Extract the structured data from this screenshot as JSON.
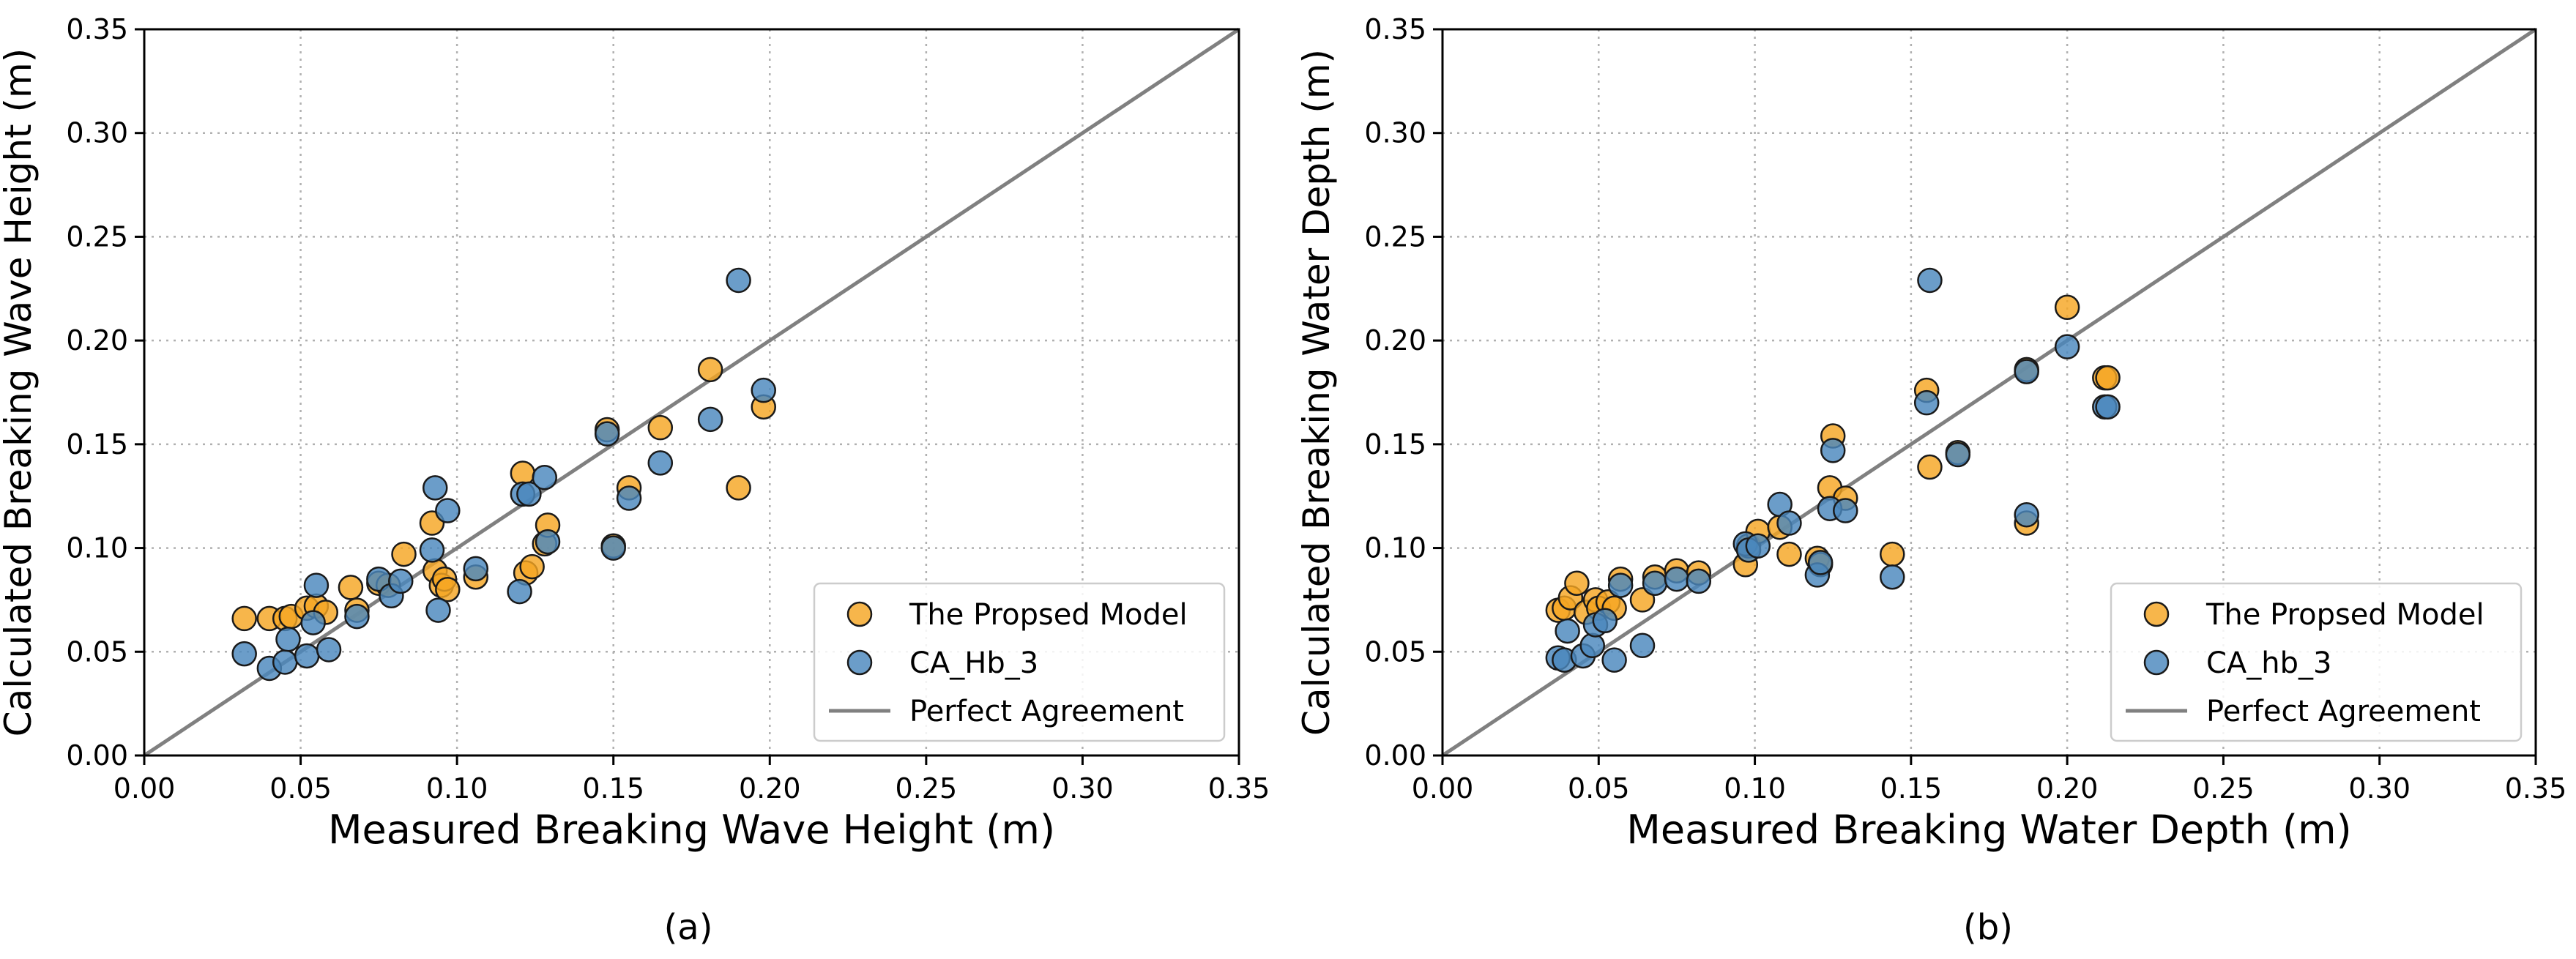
{
  "chart_data": [
    {
      "type": "scatter",
      "panel_label": "(a)",
      "xlabel": "Measured Breaking Wave Height (m)",
      "ylabel": "Calculated Breaking Wave Height (m)",
      "xlim": [
        0,
        0.35
      ],
      "ylim": [
        0,
        0.35
      ],
      "xticks": [
        "0.00",
        "0.05",
        "0.10",
        "0.15",
        "0.20",
        "0.25",
        "0.30",
        "0.35"
      ],
      "yticks": [
        "0.00",
        "0.05",
        "0.10",
        "0.15",
        "0.20",
        "0.25",
        "0.30",
        "0.35"
      ],
      "grid": true,
      "legend_position": "lower-right",
      "series": [
        {
          "name": "The Propsed Model",
          "color": "#f5a623",
          "points": [
            [
              0.032,
              0.066
            ],
            [
              0.04,
              0.066
            ],
            [
              0.045,
              0.066
            ],
            [
              0.047,
              0.067
            ],
            [
              0.052,
              0.071
            ],
            [
              0.055,
              0.072
            ],
            [
              0.058,
              0.069
            ],
            [
              0.066,
              0.081
            ],
            [
              0.068,
              0.07
            ],
            [
              0.075,
              0.083
            ],
            [
              0.078,
              0.082
            ],
            [
              0.083,
              0.097
            ],
            [
              0.092,
              0.112
            ],
            [
              0.093,
              0.089
            ],
            [
              0.095,
              0.082
            ],
            [
              0.096,
              0.085
            ],
            [
              0.097,
              0.08
            ],
            [
              0.106,
              0.086
            ],
            [
              0.121,
              0.136
            ],
            [
              0.122,
              0.088
            ],
            [
              0.124,
              0.091
            ],
            [
              0.128,
              0.102
            ],
            [
              0.129,
              0.111
            ],
            [
              0.148,
              0.157
            ],
            [
              0.15,
              0.101
            ],
            [
              0.155,
              0.129
            ],
            [
              0.165,
              0.158
            ],
            [
              0.181,
              0.186
            ],
            [
              0.19,
              0.129
            ],
            [
              0.198,
              0.168
            ]
          ]
        },
        {
          "name": "CA_Hb_3",
          "color": "#4a87bd",
          "points": [
            [
              0.032,
              0.049
            ],
            [
              0.04,
              0.042
            ],
            [
              0.045,
              0.045
            ],
            [
              0.046,
              0.056
            ],
            [
              0.052,
              0.048
            ],
            [
              0.054,
              0.064
            ],
            [
              0.055,
              0.082
            ],
            [
              0.059,
              0.051
            ],
            [
              0.068,
              0.067
            ],
            [
              0.075,
              0.085
            ],
            [
              0.079,
              0.077
            ],
            [
              0.082,
              0.084
            ],
            [
              0.092,
              0.099
            ],
            [
              0.093,
              0.129
            ],
            [
              0.094,
              0.07
            ],
            [
              0.097,
              0.118
            ],
            [
              0.106,
              0.09
            ],
            [
              0.12,
              0.079
            ],
            [
              0.121,
              0.126
            ],
            [
              0.123,
              0.126
            ],
            [
              0.128,
              0.134
            ],
            [
              0.129,
              0.103
            ],
            [
              0.148,
              0.155
            ],
            [
              0.15,
              0.1
            ],
            [
              0.155,
              0.124
            ],
            [
              0.165,
              0.141
            ],
            [
              0.181,
              0.162
            ],
            [
              0.19,
              0.229
            ],
            [
              0.198,
              0.176
            ]
          ]
        },
        {
          "name": "Perfect Agreement",
          "color": "#808080",
          "kind": "line",
          "points": [
            [
              0,
              0
            ],
            [
              0.35,
              0.35
            ]
          ]
        }
      ]
    },
    {
      "type": "scatter",
      "panel_label": "(b)",
      "xlabel": "Measured Breaking Water Depth (m)",
      "ylabel": "Calculated Breaking Water Depth (m)",
      "xlim": [
        0,
        0.35
      ],
      "ylim": [
        0,
        0.35
      ],
      "xticks": [
        "0.00",
        "0.05",
        "0.10",
        "0.15",
        "0.20",
        "0.25",
        "0.30",
        "0.35"
      ],
      "yticks": [
        "0.00",
        "0.05",
        "0.10",
        "0.15",
        "0.20",
        "0.25",
        "0.30",
        "0.35"
      ],
      "grid": true,
      "legend_position": "lower-right",
      "series": [
        {
          "name": "The Propsed Model",
          "color": "#f5a623",
          "points": [
            [
              0.037,
              0.07
            ],
            [
              0.039,
              0.071
            ],
            [
              0.041,
              0.076
            ],
            [
              0.043,
              0.083
            ],
            [
              0.046,
              0.069
            ],
            [
              0.049,
              0.075
            ],
            [
              0.05,
              0.071
            ],
            [
              0.053,
              0.074
            ],
            [
              0.055,
              0.071
            ],
            [
              0.057,
              0.085
            ],
            [
              0.064,
              0.075
            ],
            [
              0.068,
              0.086
            ],
            [
              0.075,
              0.089
            ],
            [
              0.082,
              0.088
            ],
            [
              0.097,
              0.092
            ],
            [
              0.098,
              0.101
            ],
            [
              0.101,
              0.108
            ],
            [
              0.108,
              0.11
            ],
            [
              0.111,
              0.097
            ],
            [
              0.12,
              0.095
            ],
            [
              0.121,
              0.092
            ],
            [
              0.124,
              0.129
            ],
            [
              0.125,
              0.154
            ],
            [
              0.129,
              0.124
            ],
            [
              0.144,
              0.097
            ],
            [
              0.155,
              0.176
            ],
            [
              0.156,
              0.139
            ],
            [
              0.165,
              0.146
            ],
            [
              0.187,
              0.186
            ],
            [
              0.187,
              0.112
            ],
            [
              0.2,
              0.216
            ],
            [
              0.212,
              0.182
            ],
            [
              0.213,
              0.182
            ]
          ]
        },
        {
          "name": "CA_hb_3",
          "color": "#4a87bd",
          "points": [
            [
              0.037,
              0.047
            ],
            [
              0.039,
              0.046
            ],
            [
              0.04,
              0.06
            ],
            [
              0.045,
              0.048
            ],
            [
              0.048,
              0.053
            ],
            [
              0.049,
              0.063
            ],
            [
              0.052,
              0.065
            ],
            [
              0.055,
              0.046
            ],
            [
              0.057,
              0.082
            ],
            [
              0.064,
              0.053
            ],
            [
              0.068,
              0.083
            ],
            [
              0.075,
              0.085
            ],
            [
              0.082,
              0.084
            ],
            [
              0.097,
              0.102
            ],
            [
              0.098,
              0.099
            ],
            [
              0.101,
              0.101
            ],
            [
              0.108,
              0.121
            ],
            [
              0.111,
              0.112
            ],
            [
              0.12,
              0.087
            ],
            [
              0.121,
              0.093
            ],
            [
              0.124,
              0.119
            ],
            [
              0.125,
              0.147
            ],
            [
              0.129,
              0.118
            ],
            [
              0.144,
              0.086
            ],
            [
              0.155,
              0.17
            ],
            [
              0.156,
              0.229
            ],
            [
              0.165,
              0.145
            ],
            [
              0.187,
              0.185
            ],
            [
              0.187,
              0.116
            ],
            [
              0.2,
              0.197
            ],
            [
              0.212,
              0.168
            ],
            [
              0.213,
              0.168
            ]
          ]
        },
        {
          "name": "Perfect Agreement",
          "color": "#808080",
          "kind": "line",
          "points": [
            [
              0,
              0
            ],
            [
              0.35,
              0.35
            ]
          ]
        }
      ]
    }
  ]
}
